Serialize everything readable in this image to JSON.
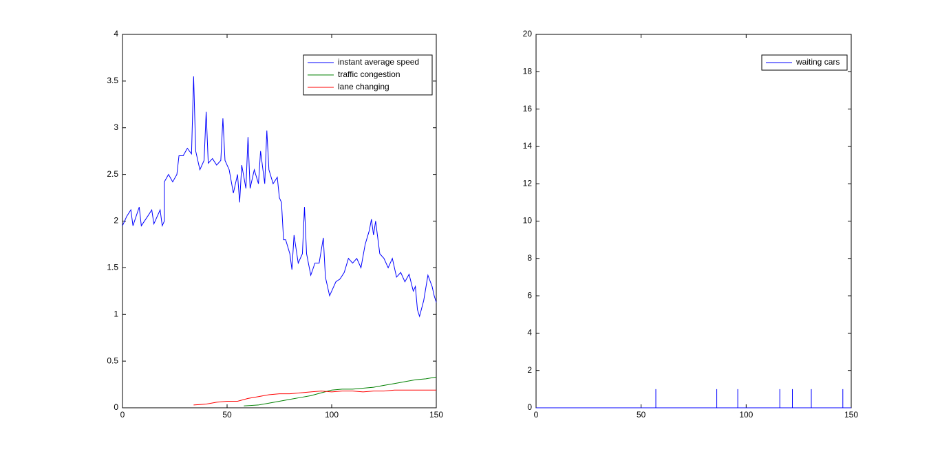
{
  "chart_data": [
    {
      "type": "line",
      "xlim": [
        0,
        150
      ],
      "xticks": [
        0,
        50,
        100,
        150
      ],
      "ylim": [
        0,
        4
      ],
      "yticks": [
        0,
        0.5,
        1,
        1.5,
        2,
        2.5,
        3,
        3.5,
        4
      ],
      "legend": "top-right",
      "series": [
        {
          "name": "instant average speed",
          "color": "#0000ff",
          "x": [
            0,
            2,
            4,
            5,
            8,
            9,
            12,
            14,
            15,
            18,
            19,
            20,
            20,
            22,
            24,
            26,
            27,
            29,
            31,
            33,
            34,
            35,
            37,
            39,
            40,
            41,
            43,
            45,
            47,
            48,
            49,
            51,
            53,
            55,
            56,
            57,
            59,
            60,
            61,
            63,
            65,
            66,
            68,
            69,
            70,
            72,
            74,
            75,
            76,
            77,
            78,
            80,
            81,
            82,
            84,
            86,
            87,
            88,
            90,
            92,
            94,
            96,
            97,
            99,
            100,
            102,
            104,
            106,
            108,
            110,
            112,
            114,
            116,
            118,
            119,
            120,
            121,
            123,
            125,
            127,
            129,
            131,
            133,
            135,
            137,
            139,
            140,
            141,
            142,
            144,
            146,
            148,
            149,
            150
          ],
          "values": [
            1.95,
            2.05,
            2.12,
            1.95,
            2.15,
            1.95,
            2.05,
            2.12,
            1.97,
            2.12,
            1.95,
            2.0,
            2.42,
            2.5,
            2.42,
            2.5,
            2.7,
            2.7,
            2.78,
            2.72,
            3.55,
            2.75,
            2.55,
            2.65,
            3.17,
            2.62,
            2.67,
            2.6,
            2.65,
            3.1,
            2.65,
            2.55,
            2.3,
            2.5,
            2.2,
            2.6,
            2.35,
            2.9,
            2.35,
            2.55,
            2.4,
            2.75,
            2.4,
            2.97,
            2.55,
            2.4,
            2.47,
            2.25,
            2.2,
            1.8,
            1.8,
            1.65,
            1.48,
            1.85,
            1.55,
            1.65,
            2.15,
            1.65,
            1.42,
            1.55,
            1.55,
            1.82,
            1.4,
            1.2,
            1.25,
            1.35,
            1.38,
            1.45,
            1.6,
            1.55,
            1.6,
            1.5,
            1.75,
            1.9,
            2.02,
            1.85,
            2.0,
            1.65,
            1.6,
            1.5,
            1.6,
            1.4,
            1.45,
            1.35,
            1.43,
            1.25,
            1.3,
            1.05,
            0.98,
            1.15,
            1.42,
            1.3,
            1.2,
            1.13
          ]
        },
        {
          "name": "traffic congestion",
          "color": "#008000",
          "x": [
            58,
            65,
            70,
            75,
            80,
            85,
            90,
            95,
            100,
            105,
            110,
            115,
            120,
            125,
            130,
            135,
            140,
            145,
            150
          ],
          "values": [
            0.02,
            0.03,
            0.05,
            0.07,
            0.09,
            0.11,
            0.13,
            0.16,
            0.19,
            0.2,
            0.2,
            0.21,
            0.22,
            0.24,
            0.26,
            0.28,
            0.3,
            0.31,
            0.33
          ]
        },
        {
          "name": "lane changing",
          "color": "#ff0000",
          "x": [
            34,
            40,
            45,
            50,
            55,
            60,
            65,
            70,
            75,
            80,
            85,
            90,
            95,
            100,
            105,
            110,
            115,
            120,
            125,
            130,
            135,
            140,
            145,
            150
          ],
          "values": [
            0.03,
            0.04,
            0.06,
            0.07,
            0.07,
            0.1,
            0.12,
            0.14,
            0.15,
            0.15,
            0.16,
            0.17,
            0.18,
            0.17,
            0.18,
            0.18,
            0.17,
            0.18,
            0.18,
            0.19,
            0.19,
            0.19,
            0.19,
            0.19
          ]
        }
      ]
    },
    {
      "type": "line",
      "xlim": [
        0,
        150
      ],
      "xticks": [
        0,
        50,
        100,
        150
      ],
      "ylim": [
        0,
        20
      ],
      "yticks": [
        0,
        2,
        4,
        6,
        8,
        10,
        12,
        14,
        16,
        18,
        20
      ],
      "legend": "top-right",
      "series": [
        {
          "name": "waiting cars",
          "color": "#0000ff",
          "x": [
            0,
            57,
            57,
            57,
            86,
            86,
            86,
            96,
            96,
            96,
            116,
            116,
            116,
            122,
            122,
            122,
            131,
            131,
            131,
            146,
            146,
            146,
            150
          ],
          "values": [
            0,
            0,
            1,
            0,
            0,
            1,
            0,
            0,
            1,
            0,
            0,
            1,
            0,
            0,
            1,
            0,
            0,
            1,
            0,
            0,
            1,
            0,
            0
          ]
        }
      ]
    }
  ]
}
